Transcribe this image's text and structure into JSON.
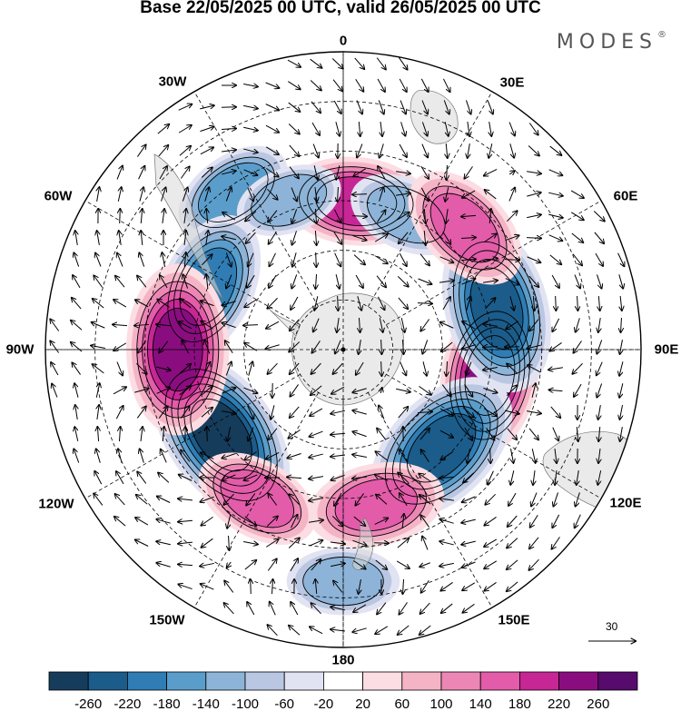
{
  "title": "Base 22/05/2025 00 UTC, valid 26/05/2025 00 UTC",
  "brand": {
    "name": "MODES",
    "mark": "®"
  },
  "longitude_labels": {
    "lon_0": "0",
    "lon_30e": "30E",
    "lon_60e": "60E",
    "lon_90e": "90E",
    "lon_120e": "120E",
    "lon_150e": "150E",
    "lon_180": "180",
    "lon_150w": "150W",
    "lon_120w": "120W",
    "lon_90w": "90W",
    "lon_60w": "60W",
    "lon_30w": "30W"
  },
  "reference_vector": {
    "value": "30"
  },
  "colorbar": {
    "ticks": [
      "-260",
      "-220",
      "-180",
      "-140",
      "-100",
      "-60",
      "-20",
      "20",
      "60",
      "100",
      "140",
      "180",
      "220",
      "260"
    ],
    "colors": [
      "#163c5c",
      "#1b5c8a",
      "#2f7db4",
      "#5a9dcb",
      "#8db4d8",
      "#b9c7e2",
      "#e2e3f2",
      "#ffffff",
      "#fbdde3",
      "#f5b4c6",
      "#ec87b5",
      "#e25ca9",
      "#c72695",
      "#8a0d80",
      "#560b6d"
    ]
  },
  "anomaly_centers": [
    {
      "lon": -125,
      "lat": -45,
      "value": -260
    },
    {
      "lon": -35,
      "lat": -32,
      "value": -140
    },
    {
      "lon": -65,
      "lat": -45,
      "value": -200
    },
    {
      "lon": -90,
      "lat": -40,
      "value": 240
    },
    {
      "lon": 100,
      "lat": -45,
      "value": 220
    },
    {
      "lon": 75,
      "lat": -42,
      "value": -240
    },
    {
      "lon": 135,
      "lat": -48,
      "value": -240
    },
    {
      "lon": 168,
      "lat": -42,
      "value": 170
    },
    {
      "lon": -150,
      "lat": -38,
      "value": 150
    },
    {
      "lon": 180,
      "lat": -20,
      "value": -120
    },
    {
      "lon": 5,
      "lat": -45,
      "value": 190
    },
    {
      "lon": 25,
      "lat": -45,
      "value": -130
    },
    {
      "lon": 45,
      "lat": -38,
      "value": 170
    },
    {
      "lon": -20,
      "lat": -42,
      "value": -110
    }
  ]
}
